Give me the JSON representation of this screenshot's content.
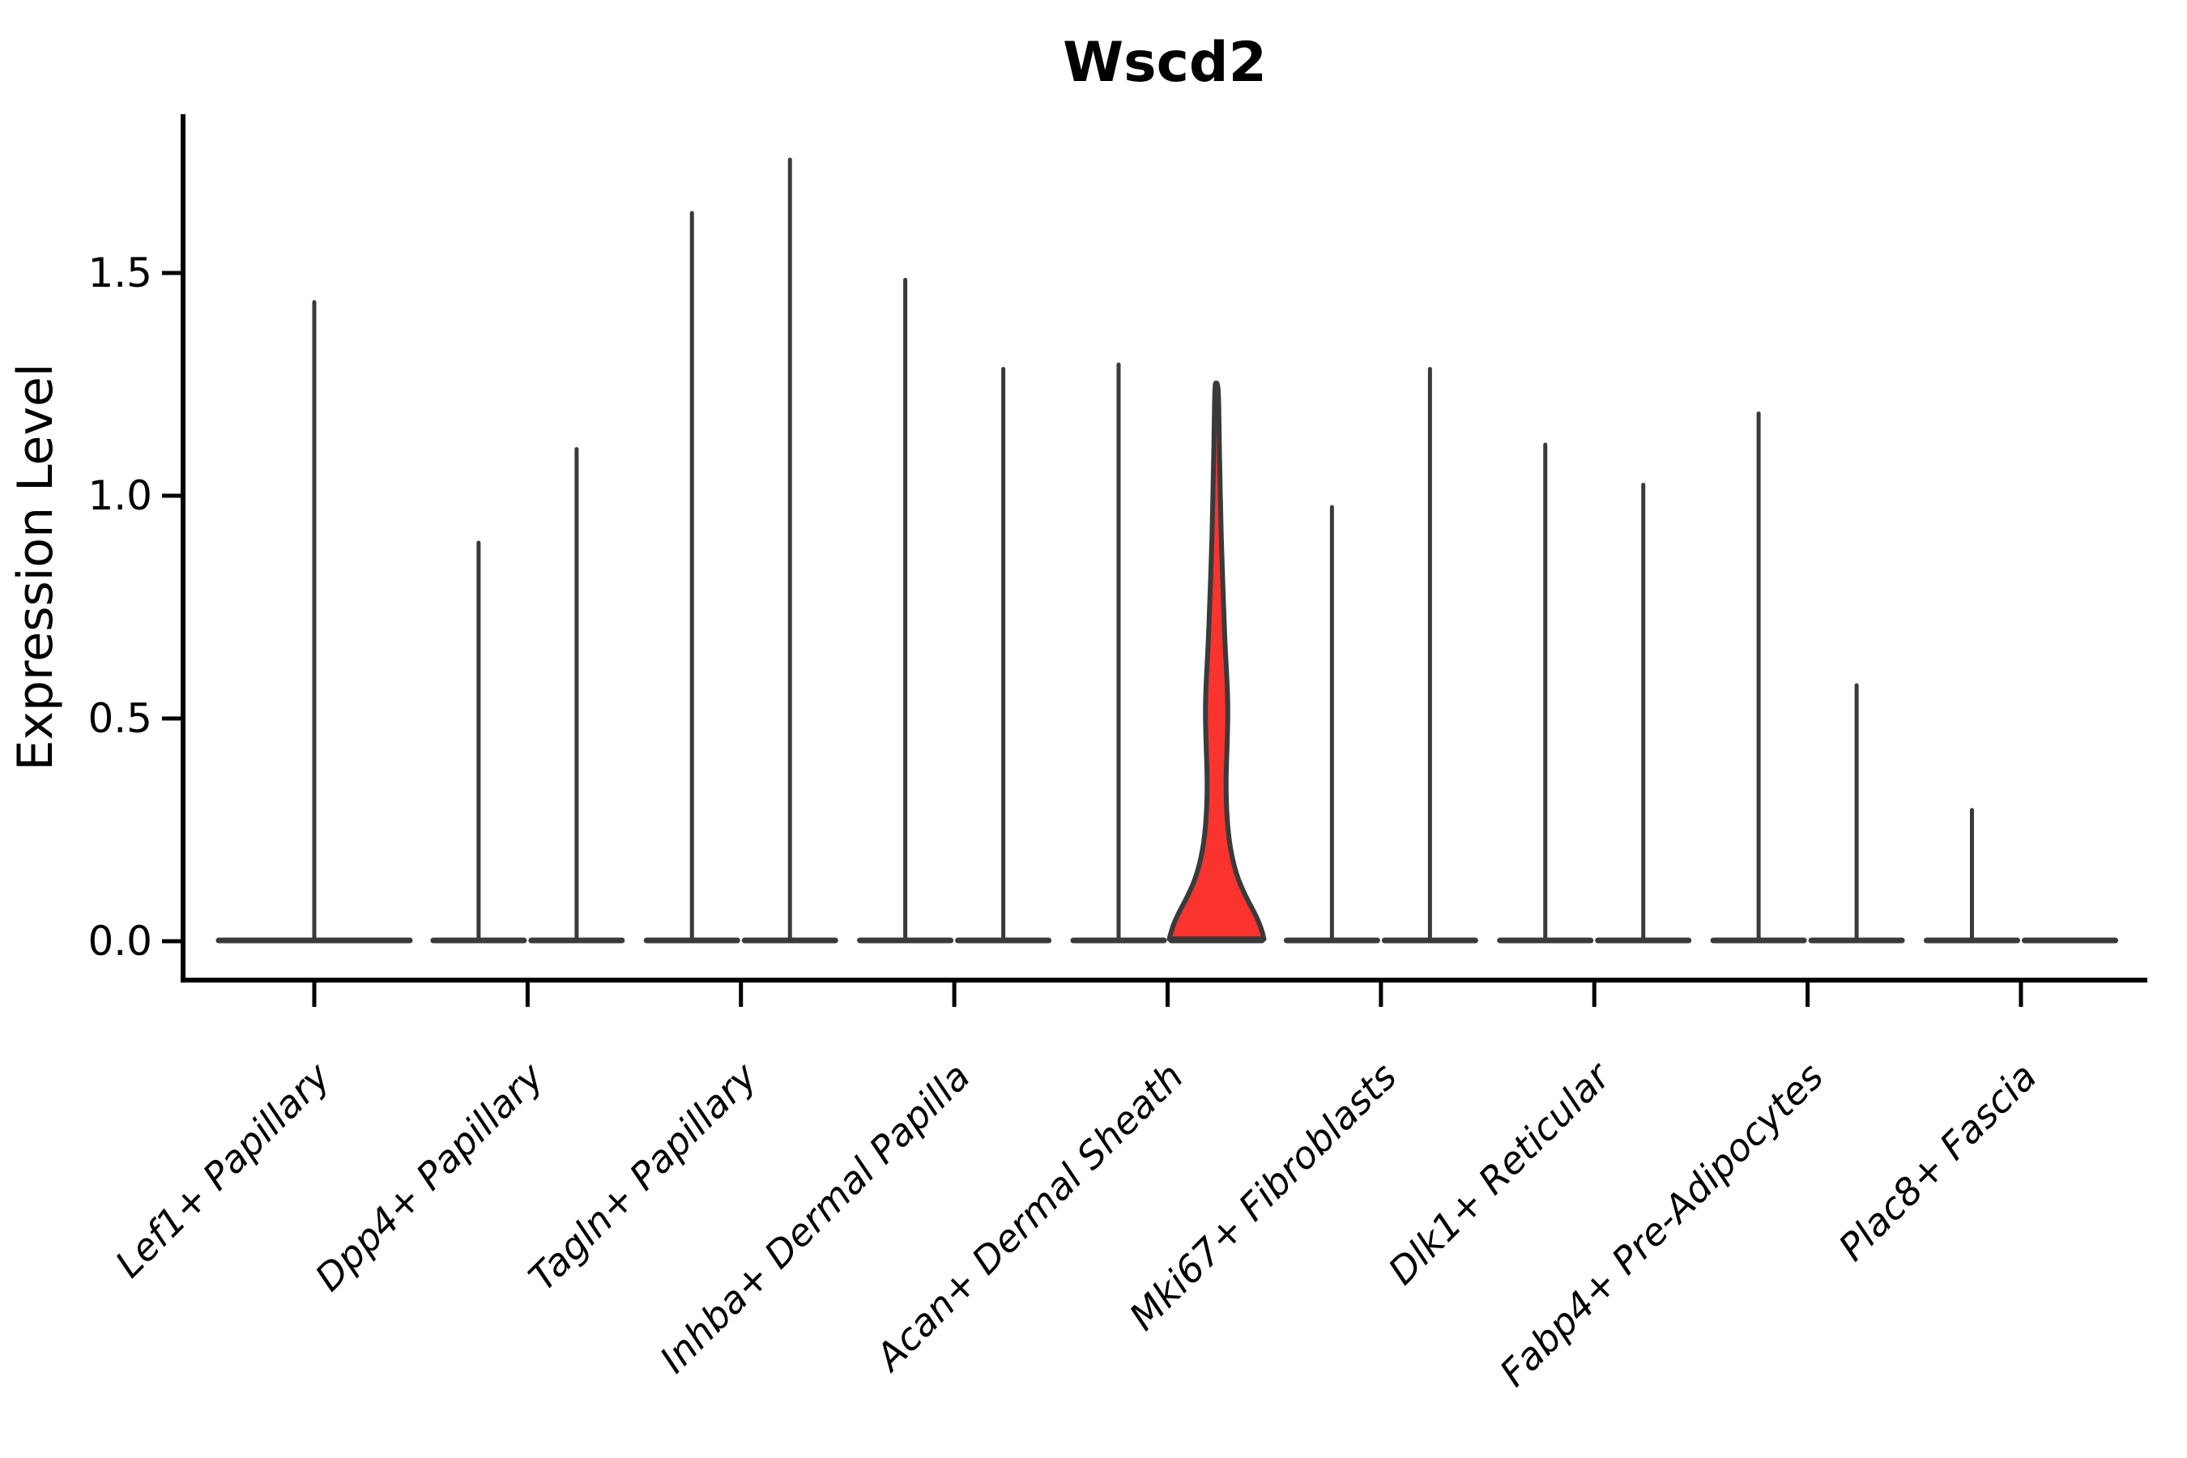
{
  "title": "Wscd2",
  "colors": {
    "background": "#ffffff",
    "axis": "#000000",
    "violin_stroke": "#3a3a3a",
    "highlight_fill": "#fa332e",
    "text": "#000000"
  },
  "chart_data": {
    "type": "violin",
    "title": "Wscd2",
    "xlabel": "",
    "ylabel": "Expression Level",
    "ylim": [
      -0.09,
      1.86
    ],
    "yticks": [
      "0.0",
      "0.5",
      "1.0",
      "1.5"
    ],
    "ytick_values": [
      0.0,
      0.5,
      1.0,
      1.5
    ],
    "grid": false,
    "legend": "none",
    "categories": [
      "Lef1+ Papillary",
      "Dpp4+ Papillary",
      "Tagln+ Papillary",
      "Inhba+ Dermal Papilla",
      "Acan+ Dermal Sheath",
      "Mki67+ Fibroblasts",
      "Dlk1+ Reticular",
      "Fabp4+ Pre-Adipocytes",
      "Plac8+ Fascia"
    ],
    "violin_description": "Most cells express 0 (wide flat base at y=0); a thin needle rises to the max expression of each violin. Categories 2-9 contain two half-width violins; category 1 has one full-width violin. Only the right violin of 'Acan+ Dermal Sheath' has visible density mass above 0 and is filled red.",
    "violins": [
      {
        "category_index": 0,
        "category": "Lef1+ Papillary",
        "slot": "full",
        "max_expression": 1.44,
        "highlighted": false
      },
      {
        "category_index": 1,
        "category": "Dpp4+ Papillary",
        "slot": "left",
        "max_expression": 0.9,
        "highlighted": false
      },
      {
        "category_index": 1,
        "category": "Dpp4+ Papillary",
        "slot": "right",
        "max_expression": 1.11,
        "highlighted": false
      },
      {
        "category_index": 2,
        "category": "Tagln+ Papillary",
        "slot": "left",
        "max_expression": 1.64,
        "highlighted": false
      },
      {
        "category_index": 2,
        "category": "Tagln+ Papillary",
        "slot": "right",
        "max_expression": 1.76,
        "highlighted": false
      },
      {
        "category_index": 3,
        "category": "Inhba+ Dermal Papilla",
        "slot": "left",
        "max_expression": 1.49,
        "highlighted": false
      },
      {
        "category_index": 3,
        "category": "Inhba+ Dermal Papilla",
        "slot": "right",
        "max_expression": 1.29,
        "highlighted": false
      },
      {
        "category_index": 4,
        "category": "Acan+ Dermal Sheath",
        "slot": "left",
        "max_expression": 1.3,
        "highlighted": false
      },
      {
        "category_index": 4,
        "category": "Acan+ Dermal Sheath",
        "slot": "right",
        "max_expression": 1.25,
        "highlighted": true
      },
      {
        "category_index": 5,
        "category": "Mki67+ Fibroblasts",
        "slot": "left",
        "max_expression": 0.98,
        "highlighted": false
      },
      {
        "category_index": 5,
        "category": "Mki67+ Fibroblasts",
        "slot": "right",
        "max_expression": 1.29,
        "highlighted": false
      },
      {
        "category_index": 6,
        "category": "Dlk1+ Reticular",
        "slot": "left",
        "max_expression": 1.12,
        "highlighted": false
      },
      {
        "category_index": 6,
        "category": "Dlk1+ Reticular",
        "slot": "right",
        "max_expression": 1.03,
        "highlighted": false
      },
      {
        "category_index": 7,
        "category": "Fabp4+ Pre-Adipocytes",
        "slot": "left",
        "max_expression": 1.19,
        "highlighted": false
      },
      {
        "category_index": 7,
        "category": "Fabp4+ Pre-Adipocytes",
        "slot": "right",
        "max_expression": 0.58,
        "highlighted": false
      },
      {
        "category_index": 8,
        "category": "Plac8+ Fascia",
        "slot": "left",
        "max_expression": 0.3,
        "highlighted": false
      },
      {
        "category_index": 8,
        "category": "Plac8+ Fascia",
        "slot": "right",
        "max_expression": 0.0,
        "highlighted": false
      }
    ],
    "highlighted_violin_profile": [
      [
        1.253,
        0.037
      ],
      [
        1.15,
        0.05
      ],
      [
        1.05,
        0.067
      ],
      [
        0.95,
        0.087
      ],
      [
        0.86,
        0.108
      ],
      [
        0.76,
        0.142
      ],
      [
        0.66,
        0.175
      ],
      [
        0.58,
        0.217
      ],
      [
        0.52,
        0.233
      ],
      [
        0.45,
        0.22
      ],
      [
        0.37,
        0.192
      ],
      [
        0.3,
        0.2
      ],
      [
        0.22,
        0.258
      ],
      [
        0.15,
        0.4
      ],
      [
        0.1,
        0.6
      ],
      [
        0.06,
        0.8
      ],
      [
        0.03,
        0.917
      ],
      [
        0.005,
        0.975
      ]
    ]
  }
}
